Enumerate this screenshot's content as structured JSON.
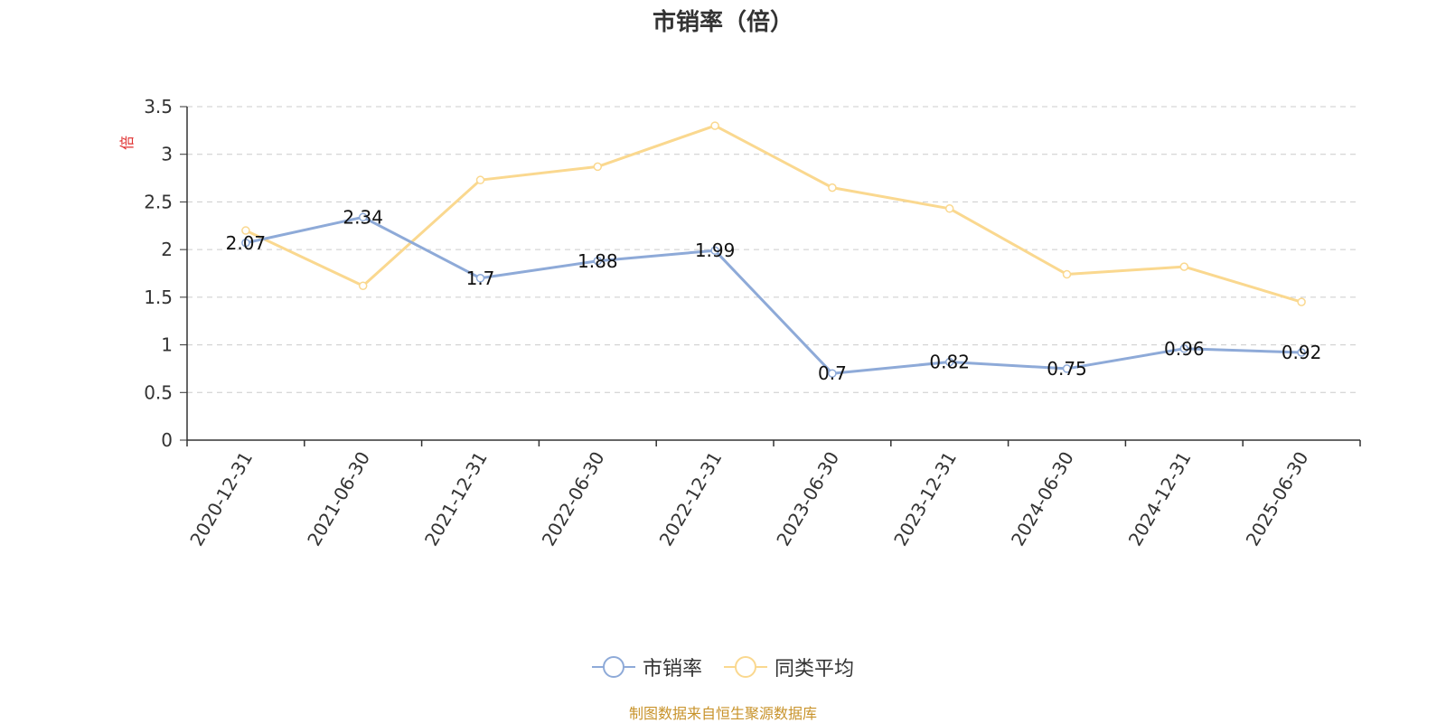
{
  "title": "市销率（倍）",
  "source": "制图数据来自恒生聚源数据库",
  "chart_data": {
    "type": "line",
    "title": "市销率（倍）",
    "ylabel": "倍",
    "ylim": [
      0,
      3.5
    ],
    "yticks": [
      0,
      0.5,
      1,
      1.5,
      2,
      2.5,
      3,
      3.5
    ],
    "grid": true,
    "legend_position": "bottom",
    "categories": [
      "2020-12-31",
      "2021-06-30",
      "2021-12-31",
      "2022-06-30",
      "2022-12-31",
      "2023-06-30",
      "2023-12-31",
      "2024-06-30",
      "2024-12-31",
      "2025-06-30"
    ],
    "series": [
      {
        "name": "市销率",
        "color": "#8eaad8",
        "show_labels": true,
        "values": [
          2.07,
          2.34,
          1.7,
          1.88,
          1.99,
          0.7,
          0.82,
          0.75,
          0.96,
          0.92
        ]
      },
      {
        "name": "同类平均",
        "color": "#fad88f",
        "show_labels": false,
        "values": [
          2.2,
          1.62,
          2.73,
          2.87,
          3.3,
          2.65,
          2.43,
          1.74,
          1.82,
          1.45
        ]
      }
    ]
  }
}
